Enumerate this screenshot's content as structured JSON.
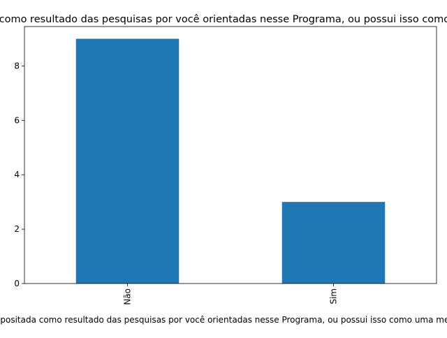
{
  "chart_data": {
    "type": "bar",
    "title": "ha patente depositada como resultado das pesquisas por você orientadas nesse Programa, ou possui isso como uma meta para o futuro?",
    "xlabel": "ha patente depositada como resultado das pesquisas por você orientadas nesse Programa, ou possui isso como uma meta para o futuro?",
    "ylabel": "",
    "categories": [
      "Não",
      "Sim"
    ],
    "values": [
      9,
      3
    ],
    "ylim": [
      0,
      9.45
    ],
    "yticks": [
      "0",
      "2",
      "4",
      "6",
      "8"
    ],
    "bar_color": "#1f77b4",
    "grid": false,
    "legend": "none"
  }
}
